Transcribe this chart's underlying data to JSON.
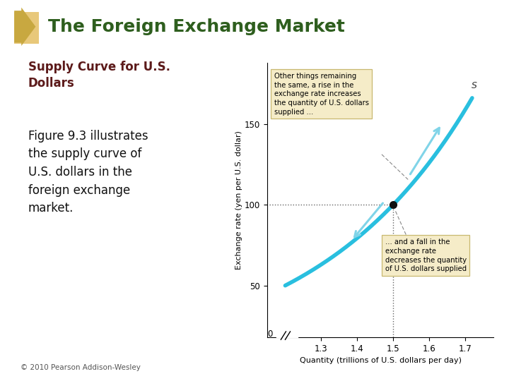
{
  "title": "The Foreign Exchange Market",
  "subtitle": "Supply Curve for U.S.\nDollars",
  "body_text": "Figure 9.3 illustrates\nthe supply curve of\nU.S. dollars in the\nforeign exchange\nmarket.",
  "xlabel": "Quantity (trillions of U.S. dollars per day)",
  "ylabel": "Exchange rate (yen per U.S. dollar)",
  "yticks": [
    50,
    100,
    150
  ],
  "xticks": [
    1.3,
    1.4,
    1.5,
    1.6,
    1.7
  ],
  "xlim": [
    1.15,
    1.78
  ],
  "ylim": [
    18,
    188
  ],
  "curve_color": "#29BFDF",
  "dot_color": "#111111",
  "dot_x": 1.5,
  "dot_y": 100,
  "annotation_upper": "Other things remaining\nthe same, a rise in the\nexchange rate increases\nthe quantity of U.S. dollars\nsupplied ...",
  "annotation_lower": "... and a fall in the\nexchange rate\ndecreases the quantity\nof U.S. dollars supplied",
  "title_color": "#2E5E1E",
  "subtitle_color": "#5C1A1A",
  "body_color": "#111111",
  "background_color": "#FFFFFF",
  "arrow_color": "#80D4E8",
  "annot_bg": "#F5ECC8",
  "annot_edge": "#C8B870",
  "copyright": "© 2010 Pearson Addison-Wesley",
  "S_label": "S",
  "icon_color1": "#E8C87A",
  "icon_color2": "#C8A840"
}
